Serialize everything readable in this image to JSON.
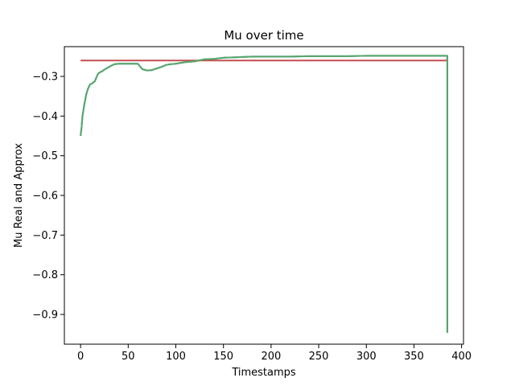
{
  "chart_data": {
    "type": "line",
    "title": "Mu over time",
    "xlabel": "Timestamps",
    "ylabel": "Mu Real and Approx",
    "xlim": [
      -17,
      402
    ],
    "ylim": [
      -0.975,
      -0.225
    ],
    "xticks": [
      0,
      50,
      100,
      150,
      200,
      250,
      300,
      350,
      400
    ],
    "yticks": [
      -0.9,
      -0.8,
      -0.7,
      -0.6,
      -0.5,
      -0.4,
      -0.3
    ],
    "ytick_labels": [
      "−0.9",
      "−0.8",
      "−0.7",
      "−0.6",
      "−0.5",
      "−0.4",
      "−0.3"
    ],
    "grid": false,
    "legend": "none",
    "colors": {
      "approx": "#c44e52",
      "real": "#55a868",
      "real_shadow": "#4c72b0"
    },
    "series": [
      {
        "color": "#c44e52",
        "x": [
          0,
          385,
          385
        ],
        "y": [
          -0.26,
          -0.26,
          -0.25
        ]
      },
      {
        "color": "#55a868",
        "x": [
          0,
          1,
          2,
          4,
          6,
          8,
          10,
          12,
          15,
          18,
          20,
          22,
          25,
          28,
          30,
          33,
          36,
          40,
          45,
          50,
          55,
          60,
          65,
          70,
          75,
          80,
          85,
          90,
          95,
          100,
          110,
          120,
          130,
          140,
          150,
          160,
          170,
          180,
          200,
          220,
          240,
          260,
          280,
          300,
          320,
          340,
          360,
          384,
          385,
          385
        ],
        "y": [
          -0.45,
          -0.43,
          -0.4,
          -0.37,
          -0.345,
          -0.33,
          -0.32,
          -0.318,
          -0.312,
          -0.295,
          -0.29,
          -0.288,
          -0.283,
          -0.279,
          -0.276,
          -0.272,
          -0.269,
          -0.268,
          -0.268,
          -0.268,
          -0.268,
          -0.268,
          -0.282,
          -0.285,
          -0.284,
          -0.28,
          -0.276,
          -0.271,
          -0.269,
          -0.268,
          -0.264,
          -0.262,
          -0.257,
          -0.256,
          -0.253,
          -0.252,
          -0.251,
          -0.25,
          -0.25,
          -0.25,
          -0.249,
          -0.249,
          -0.249,
          -0.248,
          -0.248,
          -0.248,
          -0.248,
          -0.248,
          -0.248,
          -0.946
        ]
      }
    ]
  }
}
